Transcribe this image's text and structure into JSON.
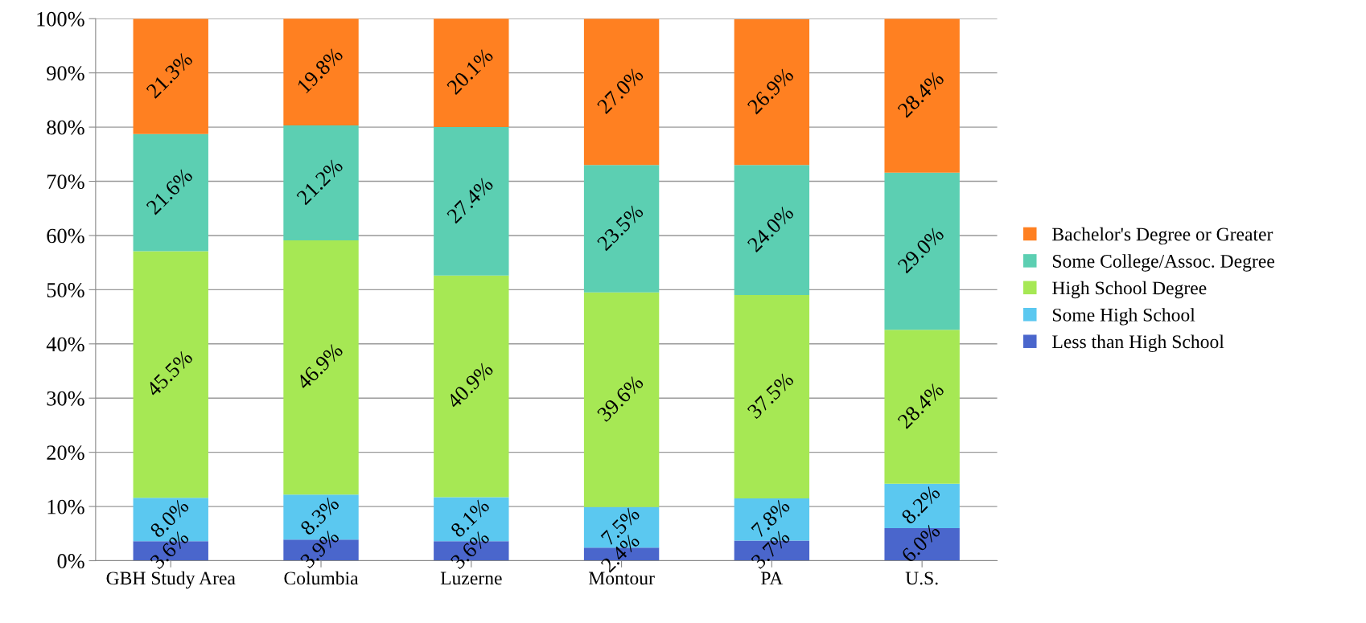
{
  "chart_data": {
    "type": "bar",
    "stacked": true,
    "categories": [
      "GBH Study Area",
      "Columbia",
      "Luzerne",
      "Montour",
      "PA",
      "U.S."
    ],
    "series": [
      {
        "name": "Less than High School",
        "color": "#4a66cc",
        "values": [
          3.6,
          3.9,
          3.6,
          2.4,
          3.7,
          6.0
        ],
        "value_labels": [
          "3.6%",
          "3.9%",
          "3.6%",
          "2.4%",
          "3.7%",
          "6.0%"
        ]
      },
      {
        "name": "Some High School",
        "color": "#5bc8f0",
        "values": [
          8.0,
          8.3,
          8.1,
          7.5,
          7.8,
          8.2
        ],
        "value_labels": [
          "8.0%",
          "8.3%",
          "8.1%",
          "7.5%",
          "7.8%",
          "8.2%"
        ]
      },
      {
        "name": "High School Degree",
        "color": "#a6e854",
        "values": [
          45.5,
          46.9,
          40.9,
          39.6,
          37.5,
          28.4
        ],
        "value_labels": [
          "45.5%",
          "46.9%",
          "40.9%",
          "39.6%",
          "37.5%",
          "28.4%"
        ]
      },
      {
        "name": "Some College/Assoc. Degree",
        "color": "#5ccfb2",
        "values": [
          21.6,
          21.2,
          27.4,
          23.5,
          24.0,
          29.0
        ],
        "value_labels": [
          "21.6%",
          "21.2%",
          "27.4%",
          "23.5%",
          "24.0%",
          "29.0%"
        ]
      },
      {
        "name": "Bachelor's Degree or Greater",
        "color": "#ff8021",
        "values": [
          21.3,
          19.8,
          20.1,
          27.0,
          26.9,
          28.4
        ],
        "value_labels": [
          "21.3%",
          "19.8%",
          "20.1%",
          "27.0%",
          "26.9%",
          "28.4%"
        ]
      }
    ],
    "ylim": [
      0,
      100
    ],
    "yticks": [
      {
        "value": 0,
        "label": "0%"
      },
      {
        "value": 10,
        "label": "10%"
      },
      {
        "value": 20,
        "label": "20%"
      },
      {
        "value": 30,
        "label": "30%"
      },
      {
        "value": 40,
        "label": "40%"
      },
      {
        "value": 50,
        "label": "50%"
      },
      {
        "value": 60,
        "label": "60%"
      },
      {
        "value": 70,
        "label": "70%"
      },
      {
        "value": 80,
        "label": "80%"
      },
      {
        "value": 90,
        "label": "90%"
      },
      {
        "value": 100,
        "label": "100%"
      }
    ],
    "grid": "y",
    "legend": "right"
  }
}
